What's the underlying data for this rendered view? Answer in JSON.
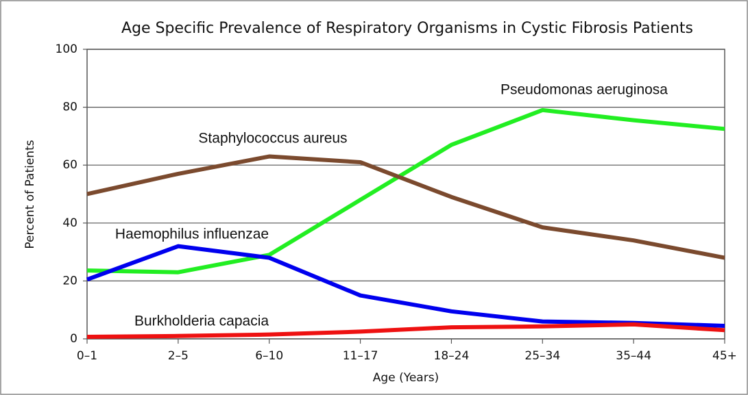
{
  "chart_data": {
    "type": "line",
    "title": "Age Specific Prevalence of Respiratory Organisms in Cystic Fibrosis Patients",
    "x_label": "Age (Years)",
    "y_label": "Percent of Patients",
    "categories": [
      "0–1",
      "2–5",
      "6–10",
      "11–17",
      "18–24",
      "25–34",
      "35–44",
      "45+"
    ],
    "series": [
      {
        "name": "Pseudomonas aeruginosa",
        "color": "#22ee22",
        "values": [
          23.6,
          23,
          29,
          48,
          67,
          79,
          75.5,
          72.5
        ]
      },
      {
        "name": "Staphylococcus aureus",
        "color": "#7b4a2e",
        "values": [
          50,
          57,
          63,
          61,
          49,
          38.5,
          34,
          28
        ]
      },
      {
        "name": "Haemophilus influenzae",
        "color": "#0000ee",
        "values": [
          20.5,
          32,
          28,
          15,
          9.5,
          6,
          5.5,
          4.5
        ]
      },
      {
        "name": "Burkholderia capacia",
        "color": "#ee1111",
        "values": [
          0.7,
          1,
          1.5,
          2.5,
          4,
          4.3,
          5,
          3
        ]
      }
    ],
    "ylim": [
      0,
      100
    ],
    "yticks": [
      0,
      20,
      40,
      60,
      80,
      100
    ],
    "grid": true
  }
}
